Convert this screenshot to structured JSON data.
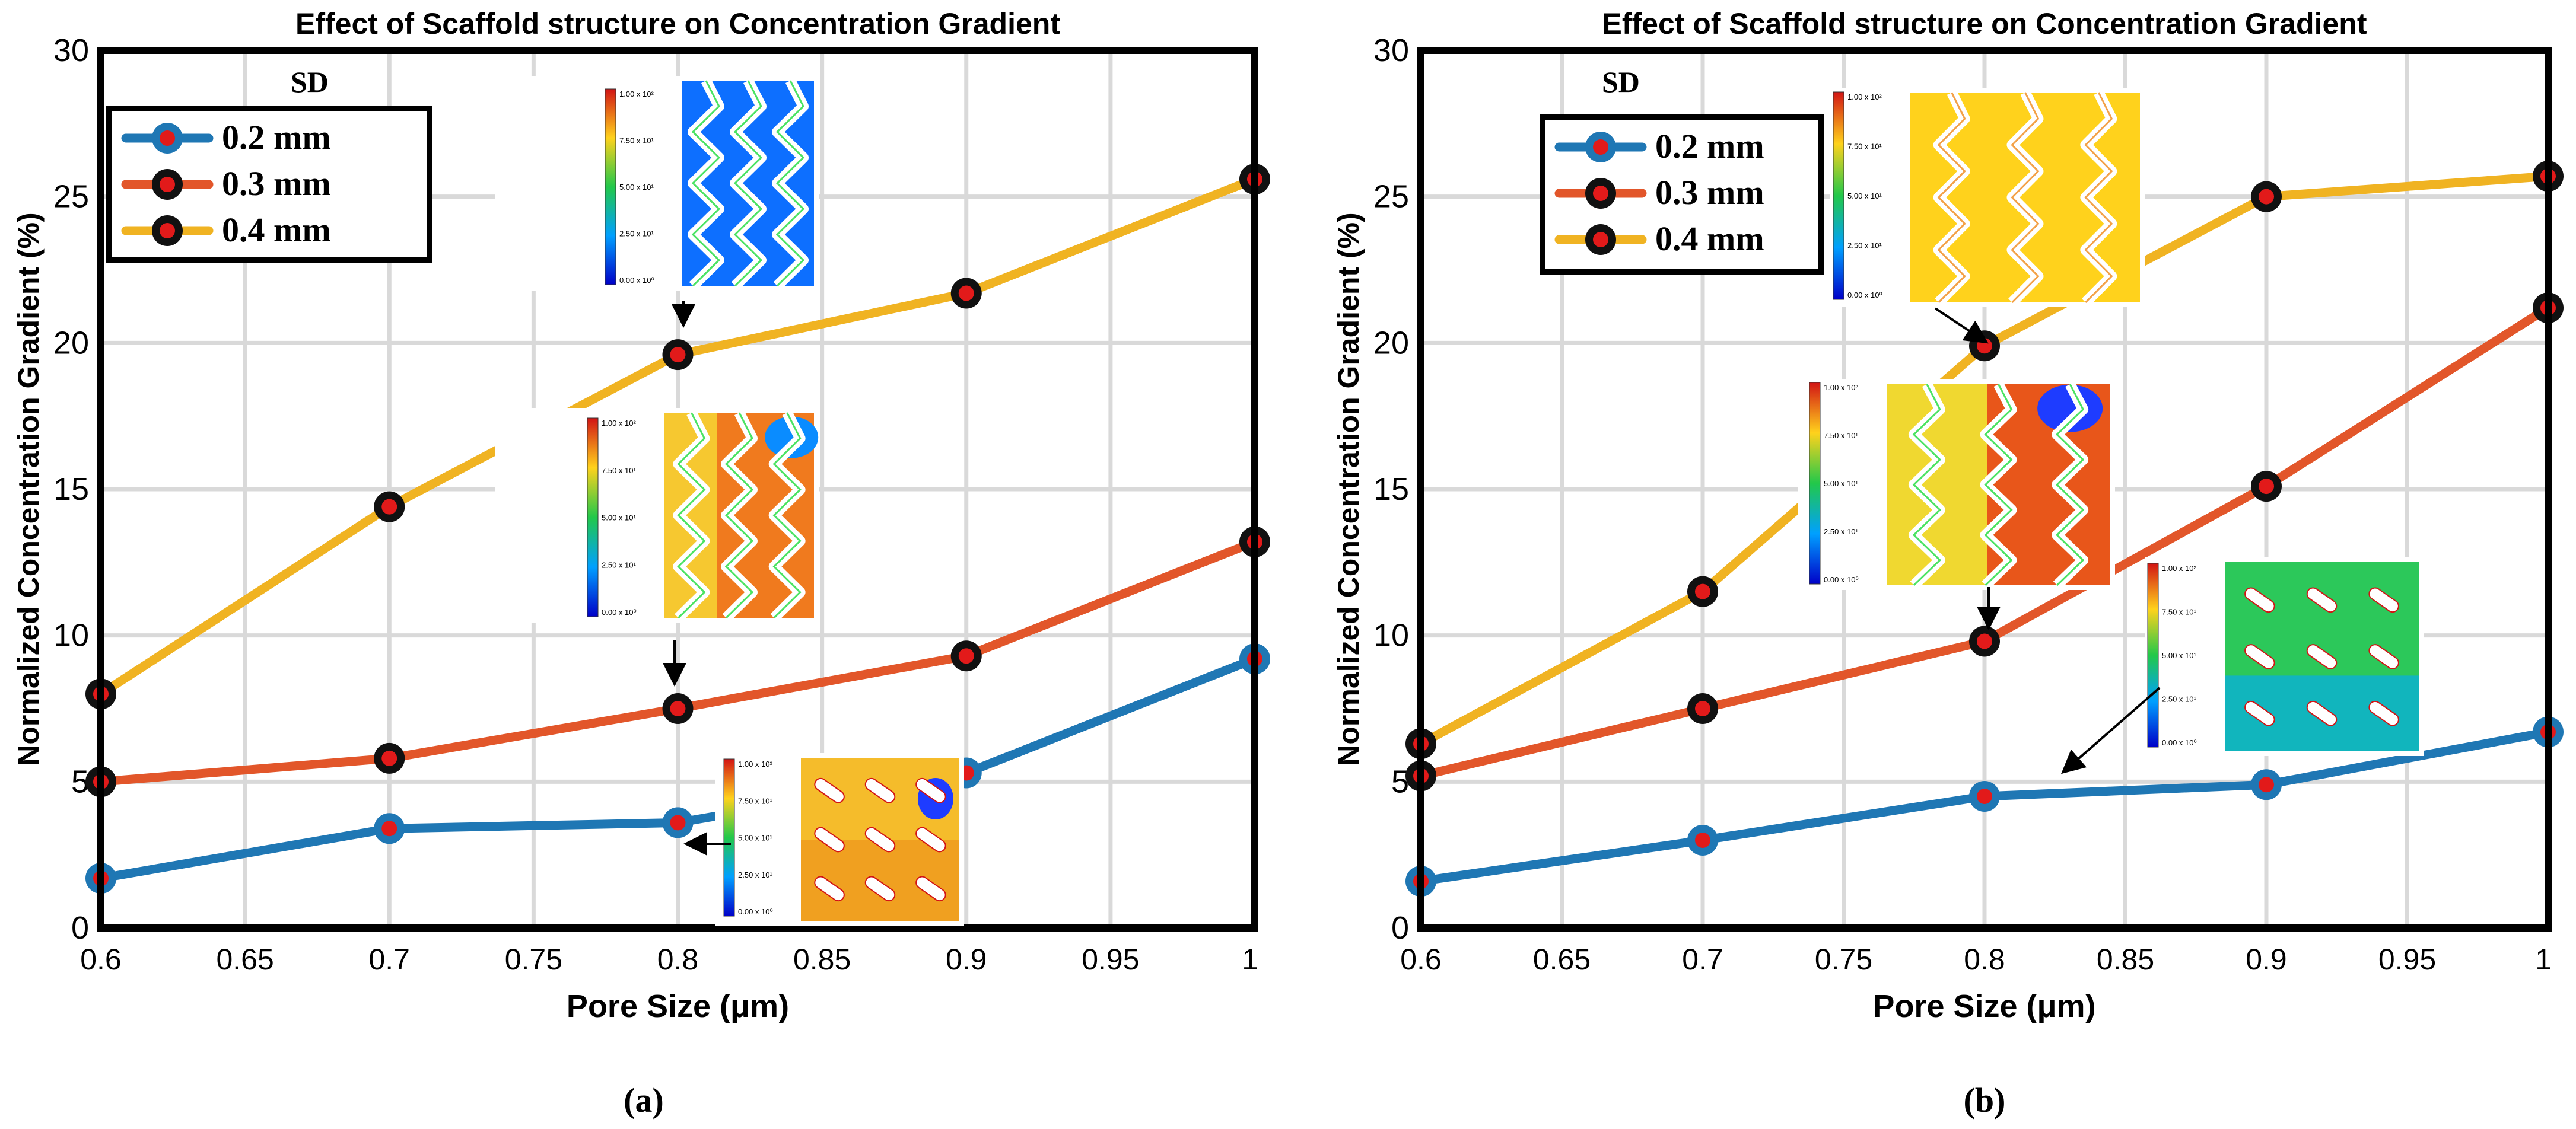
{
  "figures": [
    {
      "panel_label": "(a)",
      "chart_data": {
        "type": "line",
        "title": "Effect of Scaffold structure on Concentration Gradient",
        "xlabel": "Pore Size (μm)",
        "ylabel": "Normalized Concentration Gradient (%)",
        "xlim": [
          0.6,
          1.0
        ],
        "ylim": [
          0,
          30
        ],
        "xticks": [
          "0.6",
          "0.65",
          "0.7",
          "0.75",
          "0.8",
          "0.85",
          "0.9",
          "0.95",
          "1"
        ],
        "yticks": [
          "0",
          "5",
          "10",
          "15",
          "20",
          "25",
          "30"
        ],
        "grid": true,
        "legend_title": "SD",
        "legend_position": "top-left",
        "x": [
          0.6,
          0.7,
          0.8,
          0.9,
          1.0
        ],
        "series": [
          {
            "name": "0.2 mm",
            "values": [
              1.7,
              3.4,
              3.6,
              5.3,
              9.2
            ],
            "color": "#1f77b4"
          },
          {
            "name": "0.3 mm",
            "values": [
              5.0,
              5.8,
              7.5,
              9.3,
              13.2
            ],
            "color": "#e2562a"
          },
          {
            "name": "0.4 mm",
            "values": [
              8.0,
              14.4,
              19.6,
              21.7,
              25.6
            ],
            "color": "#f0b322"
          }
        ],
        "colorbar_labels": [
          "1.00 x 10²",
          "7.50 x 10¹",
          "5.00 x 10¹",
          "2.50 x 10¹",
          "0.00 x 10⁰"
        ]
      }
    },
    {
      "panel_label": "(b)",
      "chart_data": {
        "type": "line",
        "title": "Effect of Scaffold structure on Concentration Gradient",
        "xlabel": "Pore Size (μm)",
        "ylabel": "Normalized Concentration Gradient (%)",
        "xlim": [
          0.6,
          1.0
        ],
        "ylim": [
          0,
          30
        ],
        "xticks": [
          "0.6",
          "0.65",
          "0.7",
          "0.75",
          "0.8",
          "0.85",
          "0.9",
          "0.95",
          "1"
        ],
        "yticks": [
          "0",
          "5",
          "10",
          "15",
          "20",
          "25",
          "30"
        ],
        "grid": true,
        "legend_title": "SD",
        "legend_position": "top-left",
        "x": [
          0.6,
          0.7,
          0.8,
          0.9,
          1.0
        ],
        "series": [
          {
            "name": "0.2 mm",
            "values": [
              1.6,
              3.0,
              4.5,
              4.9,
              6.7
            ],
            "color": "#1f77b4"
          },
          {
            "name": "0.3 mm",
            "values": [
              5.2,
              7.5,
              9.8,
              15.1,
              21.2
            ],
            "color": "#e2562a"
          },
          {
            "name": "0.4 mm",
            "values": [
              6.3,
              11.5,
              19.9,
              25.0,
              25.7
            ],
            "color": "#f0b322"
          }
        ],
        "colorbar_labels": [
          "1.00 x 10²",
          "7.50 x 10¹",
          "5.00 x 10¹",
          "2.50 x 10¹",
          "0.00 x 10⁰"
        ]
      }
    }
  ]
}
